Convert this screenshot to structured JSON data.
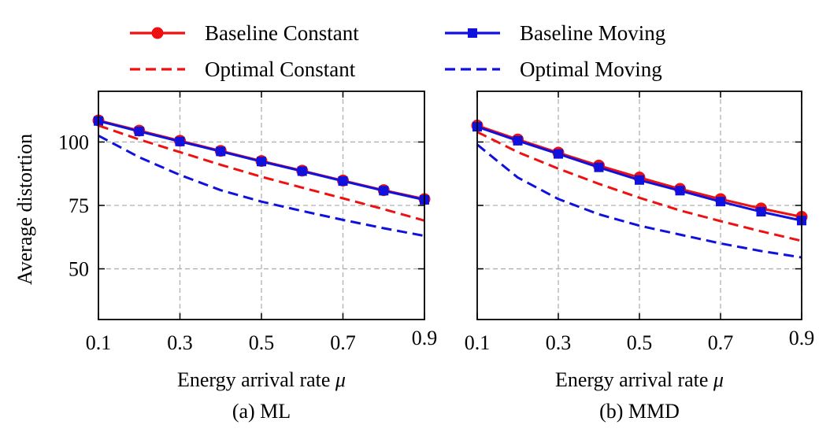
{
  "legend": [
    {
      "label": "Baseline Constant",
      "color": "#ee1111",
      "dash": "solid",
      "marker": "circle"
    },
    {
      "label": "Baseline Moving",
      "color": "#1111dd",
      "dash": "solid",
      "marker": "square"
    },
    {
      "label": "Optimal Constant",
      "color": "#ee1111",
      "dash": "dashed",
      "marker": "none"
    },
    {
      "label": "Optimal Moving",
      "color": "#1111dd",
      "dash": "dashed",
      "marker": "none"
    }
  ],
  "chart_data": [
    {
      "type": "line",
      "caption": "(a) ML",
      "xlabel": "Energy arrival rate",
      "xlabel_symbol": "μ",
      "ylabel": "Average distortion",
      "xlim": [
        0.1,
        0.9
      ],
      "ylim": [
        30,
        120
      ],
      "xticks": [
        "0.1",
        "0.3",
        "0.5",
        "0.7",
        "0.9"
      ],
      "yticks": [
        "50",
        "75",
        "100"
      ],
      "grid": true,
      "x": [
        0.1,
        0.2,
        0.3,
        0.4,
        0.5,
        0.6,
        0.7,
        0.8,
        0.9
      ],
      "series": [
        {
          "name": "Baseline Constant",
          "values": [
            108.5,
            104.5,
            100.5,
            96.5,
            92.5,
            88.7,
            84.8,
            81.0,
            77.5
          ]
        },
        {
          "name": "Baseline Moving",
          "values": [
            108.3,
            104.2,
            100.2,
            96.3,
            92.3,
            88.5,
            84.6,
            80.8,
            77.2
          ]
        },
        {
          "name": "Optimal Constant",
          "values": [
            106.5,
            101.0,
            96.0,
            91.0,
            86.3,
            82.0,
            77.8,
            73.5,
            69.0
          ]
        },
        {
          "name": "Optimal Moving",
          "values": [
            102.5,
            94.0,
            87.0,
            81.0,
            76.5,
            72.8,
            69.3,
            66.0,
            63.0
          ]
        }
      ]
    },
    {
      "type": "line",
      "caption": "(b) MMD",
      "xlabel": "Energy arrival rate",
      "xlabel_symbol": "μ",
      "ylabel": "",
      "xlim": [
        0.1,
        0.9
      ],
      "ylim": [
        30,
        120
      ],
      "xticks": [
        "0.1",
        "0.3",
        "0.5",
        "0.7",
        "0.9"
      ],
      "yticks": [
        "50",
        "75",
        "100"
      ],
      "grid": true,
      "x": [
        0.1,
        0.2,
        0.3,
        0.4,
        0.5,
        0.6,
        0.7,
        0.8,
        0.9
      ],
      "series": [
        {
          "name": "Baseline Constant",
          "values": [
            106.5,
            101.0,
            95.8,
            90.7,
            86.0,
            81.5,
            77.5,
            73.8,
            70.5
          ]
        },
        {
          "name": "Baseline Moving",
          "values": [
            106.0,
            100.5,
            95.3,
            90.0,
            85.0,
            80.8,
            76.5,
            72.5,
            69.0
          ]
        },
        {
          "name": "Optimal Constant",
          "values": [
            104.0,
            96.0,
            89.5,
            83.5,
            78.0,
            73.0,
            68.8,
            64.8,
            61.0
          ]
        },
        {
          "name": "Optimal Moving",
          "values": [
            99.0,
            86.0,
            77.5,
            71.5,
            67.0,
            63.5,
            60.0,
            57.0,
            54.5
          ]
        }
      ]
    }
  ]
}
